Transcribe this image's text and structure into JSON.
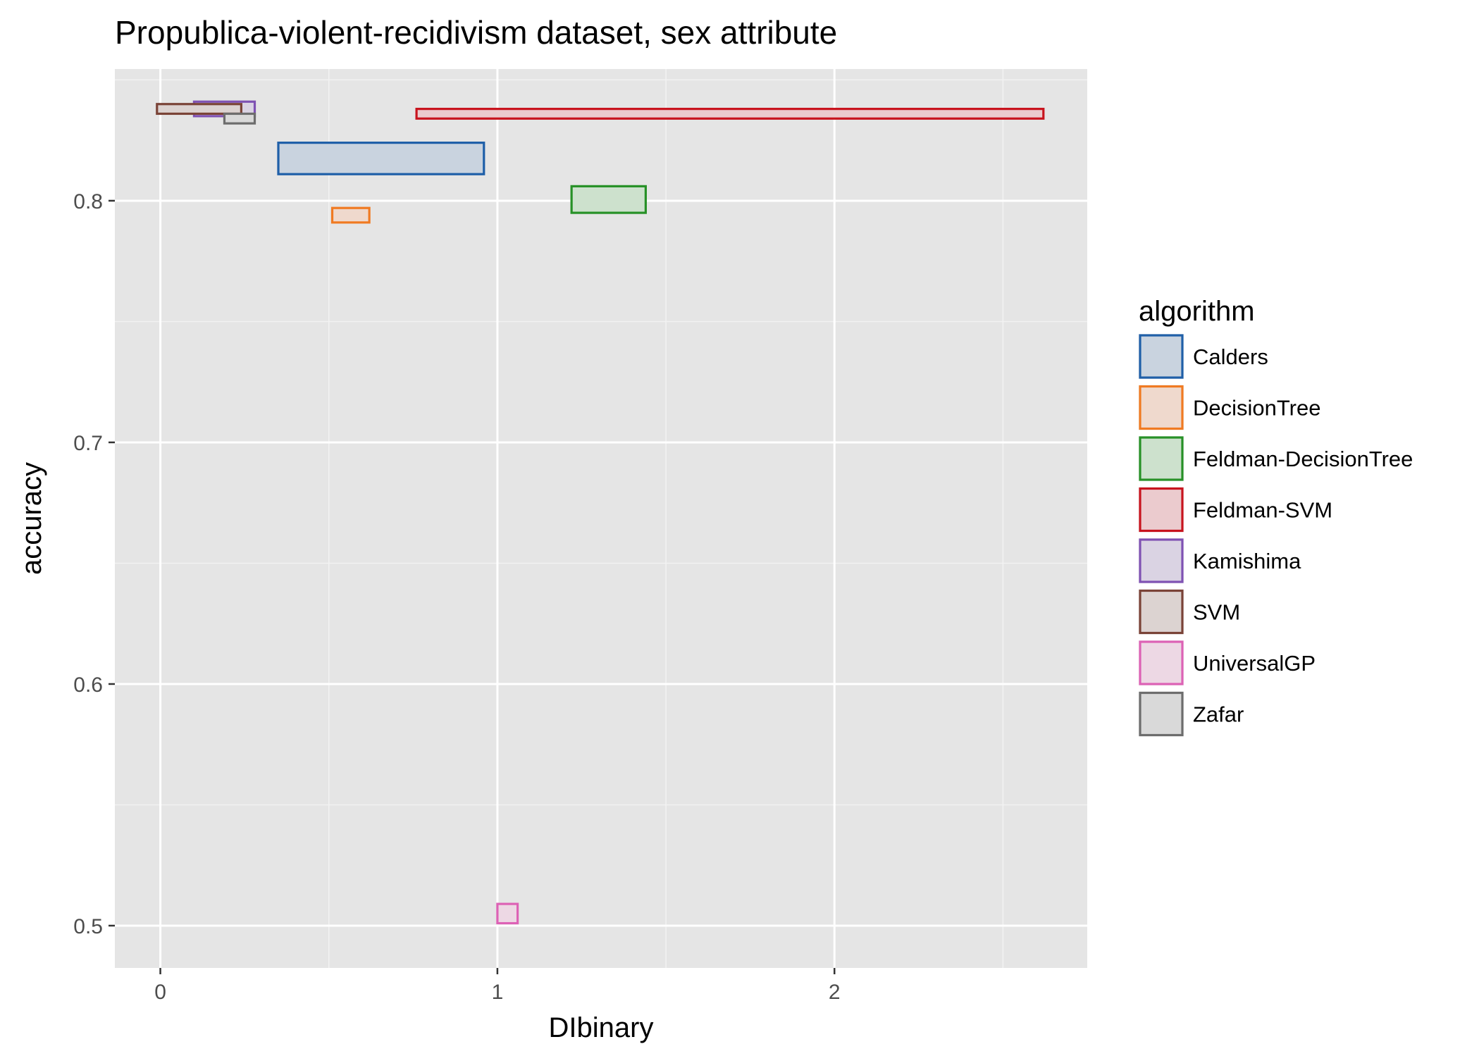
{
  "chart_data": {
    "type": "rect-range",
    "title": "Propublica-violent-recidivism dataset, sex attribute",
    "xlabel": "DIbinary",
    "ylabel": "accuracy",
    "xlim": [
      -0.135,
      2.75
    ],
    "ylim": [
      0.4825,
      0.8545
    ],
    "x_ticks": [
      0,
      1,
      2
    ],
    "x_tick_labels": [
      "0",
      "1",
      "2"
    ],
    "y_ticks": [
      0.5,
      0.6,
      0.7,
      0.8
    ],
    "y_tick_labels": [
      "0.5",
      "0.6",
      "0.7",
      "0.8"
    ],
    "grid": true,
    "legend": {
      "title": "algorithm",
      "position": "right"
    },
    "series": [
      {
        "name": "Calders",
        "color": "#1f5fa8",
        "fill": "#c9d3df",
        "x": [
          0.35,
          0.96
        ],
        "y": [
          0.811,
          0.824
        ]
      },
      {
        "name": "DecisionTree",
        "color": "#f07a22",
        "fill": "#efd9cd",
        "x": [
          0.51,
          0.62
        ],
        "y": [
          0.791,
          0.797
        ]
      },
      {
        "name": "Feldman-DecisionTree",
        "color": "#279127",
        "fill": "#cde1cd",
        "x": [
          1.22,
          1.44
        ],
        "y": [
          0.795,
          0.806
        ]
      },
      {
        "name": "Feldman-SVM",
        "color": "#c8141e",
        "fill": "#ebcbce",
        "x": [
          0.76,
          2.62
        ],
        "y": [
          0.834,
          0.838
        ]
      },
      {
        "name": "Kamishima",
        "color": "#7f52b3",
        "fill": "#dad3e3",
        "x": [
          0.1,
          0.28
        ],
        "y": [
          0.835,
          0.841
        ]
      },
      {
        "name": "SVM",
        "color": "#7a4337",
        "fill": "#dcd3d1",
        "x": [
          -0.01,
          0.24
        ],
        "y": [
          0.836,
          0.84
        ]
      },
      {
        "name": "UniversalGP",
        "color": "#dd62b5",
        "fill": "#edd8e4",
        "x": [
          1.0,
          1.06
        ],
        "y": [
          0.501,
          0.509
        ]
      },
      {
        "name": "Zafar",
        "color": "#6d6d6d",
        "fill": "#d9d9d9",
        "x": [
          0.19,
          0.28
        ],
        "y": [
          0.832,
          0.836
        ]
      }
    ]
  }
}
